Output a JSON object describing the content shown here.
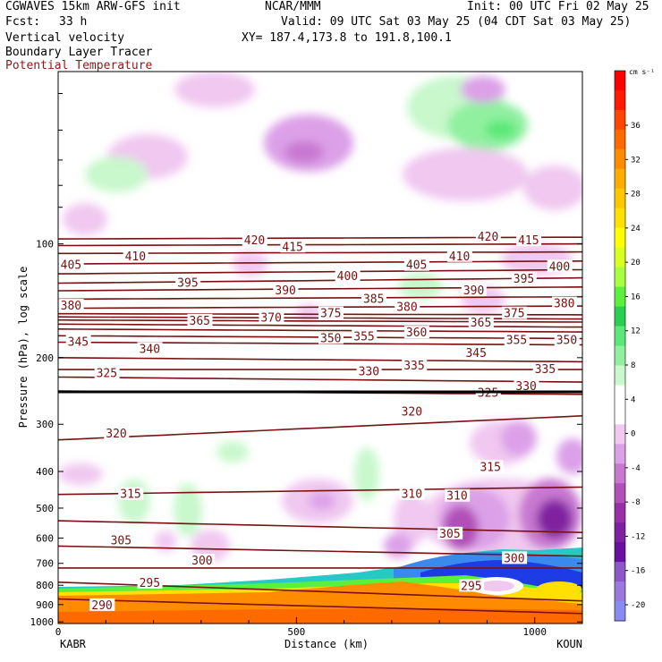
{
  "header": {
    "model": "CGWAVES 15km ARW-GFS init",
    "org": "NCAR/MMM",
    "init": "Init: 00 UTC Fri 02 May 25",
    "fcst_label": "Fcst:",
    "fcst_value": "33 h",
    "valid": "Valid: 09 UTC Sat 03 May 25 (04 CDT Sat 03 May 25)",
    "field1": "Vertical velocity",
    "xy": "XY= 187.4,173.8 to 191.8,100.1",
    "field2": "Boundary Layer Tracer",
    "field3": "Potential Temperature"
  },
  "chart_data": {
    "type": "cross-section",
    "ylabel": "Pressure (hPa), log scale",
    "xlabel": "Distance (km)",
    "x_ticks": [
      0,
      500,
      1000
    ],
    "xlim": [
      0,
      1100
    ],
    "y_ticks": [
      100,
      200,
      300,
      400,
      500,
      600,
      700,
      800,
      900,
      1000
    ],
    "ylim": [
      1010,
      35
    ],
    "y_scale": "log",
    "left_station": "KABR",
    "right_station": "KOUN",
    "colorbar": {
      "unit": "cm s⁻¹",
      "labels": [
        36,
        32,
        28,
        24,
        20,
        16,
        12,
        8,
        4,
        0,
        -4,
        -8,
        -12,
        -16,
        -20
      ],
      "colors": [
        "#ff0000",
        "#ff1a00",
        "#ff4500",
        "#ff6a00",
        "#ff8c00",
        "#ffae00",
        "#ffc800",
        "#ffe000",
        "#ffff00",
        "#d8ff20",
        "#a8ff40",
        "#5af03c",
        "#28d050",
        "#5ae878",
        "#90f0a0",
        "#c8f8cc",
        "#ffffff",
        "#ffffff",
        "#f0c8f0",
        "#dca0e8",
        "#c878d0",
        "#b050b8",
        "#9a30a8",
        "#8020a0",
        "#6a10a0",
        "#8c58c8",
        "#9a78e0",
        "#8a8af0"
      ]
    },
    "isentropes_K": [
      {
        "theta": 290,
        "p_left": 870,
        "p_right": 950
      },
      {
        "theta": 295,
        "p_left": 785,
        "p_right": 880
      },
      {
        "theta": 300,
        "p_left": 720,
        "p_right": 720
      },
      {
        "theta": 305,
        "p_left": 630,
        "p_right": 670
      },
      {
        "theta": 310,
        "p_left": 540,
        "p_right": 580
      },
      {
        "theta": 315,
        "p_left": 460,
        "p_right": 440
      },
      {
        "theta": 320,
        "p_left": 330,
        "p_right": 285
      },
      {
        "theta": 325,
        "p_left": 245,
        "p_right": 250
      },
      {
        "theta": 330,
        "p_left": 225,
        "p_right": 232
      },
      {
        "theta": 335,
        "p_left": 215,
        "p_right": 215
      },
      {
        "theta": 340,
        "p_left": 200,
        "p_right": 205
      },
      {
        "theta": 345,
        "p_left": 182,
        "p_right": 185
      },
      {
        "theta": 350,
        "p_left": 175,
        "p_right": 178
      },
      {
        "theta": 355,
        "p_left": 168,
        "p_right": 171
      },
      {
        "theta": 360,
        "p_left": 163,
        "p_right": 166
      },
      {
        "theta": 365,
        "p_left": 159,
        "p_right": 161
      },
      {
        "theta": 370,
        "p_left": 156,
        "p_right": 158
      },
      {
        "theta": 375,
        "p_left": 153,
        "p_right": 154
      },
      {
        "theta": 380,
        "p_left": 148,
        "p_right": 146
      },
      {
        "theta": 385,
        "p_left": 140,
        "p_right": 138
      },
      {
        "theta": 390,
        "p_left": 133,
        "p_right": 130
      },
      {
        "theta": 395,
        "p_left": 127,
        "p_right": 123
      },
      {
        "theta": 400,
        "p_left": 120,
        "p_right": 117
      },
      {
        "theta": 405,
        "p_left": 113,
        "p_right": 111
      },
      {
        "theta": 410,
        "p_left": 106,
        "p_right": 105
      },
      {
        "theta": 415,
        "p_left": 101,
        "p_right": 100
      },
      {
        "theta": 420,
        "p_left": 97,
        "p_right": 96
      }
    ],
    "contour_labels": [
      {
        "text": "420",
        "x": 390,
        "p": 98
      },
      {
        "text": "415",
        "x": 470,
        "p": 102
      },
      {
        "text": "405",
        "x": 5,
        "p": 114
      },
      {
        "text": "410",
        "x": 140,
        "p": 108
      },
      {
        "text": "405",
        "x": 730,
        "p": 114
      },
      {
        "text": "410",
        "x": 820,
        "p": 108
      },
      {
        "text": "420",
        "x": 880,
        "p": 96
      },
      {
        "text": "415",
        "x": 965,
        "p": 98
      },
      {
        "text": "400",
        "x": 1030,
        "p": 115
      },
      {
        "text": "395",
        "x": 250,
        "p": 127
      },
      {
        "text": "390",
        "x": 455,
        "p": 133
      },
      {
        "text": "400",
        "x": 585,
        "p": 122
      },
      {
        "text": "385",
        "x": 640,
        "p": 140
      },
      {
        "text": "390",
        "x": 850,
        "p": 133
      },
      {
        "text": "395",
        "x": 955,
        "p": 124
      },
      {
        "text": "380",
        "x": 5,
        "p": 146
      },
      {
        "text": "380",
        "x": 710,
        "p": 147
      },
      {
        "text": "380",
        "x": 1040,
        "p": 144
      },
      {
        "text": "375",
        "x": 550,
        "p": 153
      },
      {
        "text": "375",
        "x": 935,
        "p": 153
      },
      {
        "text": "365",
        "x": 275,
        "p": 160
      },
      {
        "text": "370",
        "x": 425,
        "p": 157
      },
      {
        "text": "365",
        "x": 865,
        "p": 162
      },
      {
        "text": "345",
        "x": 20,
        "p": 182
      },
      {
        "text": "340",
        "x": 170,
        "p": 190
      },
      {
        "text": "350",
        "x": 550,
        "p": 178
      },
      {
        "text": "355",
        "x": 620,
        "p": 176
      },
      {
        "text": "360",
        "x": 730,
        "p": 172
      },
      {
        "text": "355",
        "x": 940,
        "p": 180
      },
      {
        "text": "350",
        "x": 1045,
        "p": 180
      },
      {
        "text": "345",
        "x": 855,
        "p": 195
      },
      {
        "text": "325",
        "x": 80,
        "p": 220
      },
      {
        "text": "330",
        "x": 630,
        "p": 218
      },
      {
        "text": "335",
        "x": 725,
        "p": 210
      },
      {
        "text": "335",
        "x": 1000,
        "p": 215
      },
      {
        "text": "330",
        "x": 960,
        "p": 238
      },
      {
        "text": "325",
        "x": 880,
        "p": 248
      },
      {
        "text": "320",
        "x": 100,
        "p": 318
      },
      {
        "text": "320",
        "x": 720,
        "p": 278
      },
      {
        "text": "315",
        "x": 885,
        "p": 390
      },
      {
        "text": "315",
        "x": 130,
        "p": 460
      },
      {
        "text": "310",
        "x": 720,
        "p": 460
      },
      {
        "text": "310",
        "x": 815,
        "p": 465
      },
      {
        "text": "305",
        "x": 110,
        "p": 610
      },
      {
        "text": "305",
        "x": 800,
        "p": 585
      },
      {
        "text": "300",
        "x": 280,
        "p": 690
      },
      {
        "text": "300",
        "x": 935,
        "p": 680
      },
      {
        "text": "295",
        "x": 170,
        "p": 790
      },
      {
        "text": "295",
        "x": 845,
        "p": 805
      },
      {
        "text": "290",
        "x": 70,
        "p": 905
      }
    ]
  }
}
